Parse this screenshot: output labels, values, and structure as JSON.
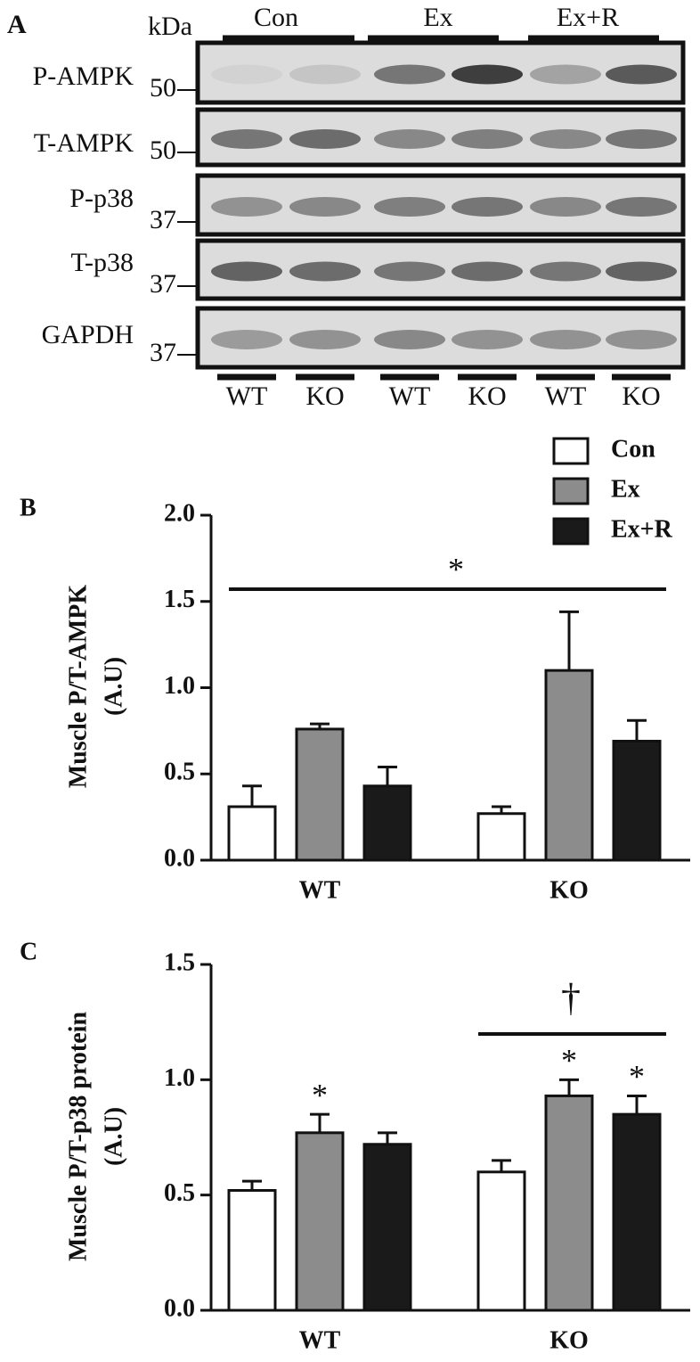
{
  "panel_a": {
    "label": "A",
    "kda": "kDa",
    "groups": [
      "Con",
      "Ex",
      "Ex+R"
    ],
    "rows": [
      {
        "name": "P-AMPK",
        "marker": 50
      },
      {
        "name": "T-AMPK",
        "marker": 50
      },
      {
        "name": "P-p38",
        "marker": 37
      },
      {
        "name": "T-p38",
        "marker": 37
      },
      {
        "name": "GAPDH",
        "marker": 37
      }
    ],
    "lanes": [
      "WT",
      "KO",
      "WT",
      "KO",
      "WT",
      "KO"
    ]
  },
  "chart_data": [
    {
      "type": "bar",
      "panel_label": "B",
      "y_label": [
        "Muscle P/T-AMPK",
        "(A.U)"
      ],
      "categories": [
        "WT",
        "KO"
      ],
      "series": [
        {
          "name": "Con",
          "color": "#ffffff",
          "values": [
            0.31,
            0.27
          ],
          "errors": [
            0.12,
            0.04
          ]
        },
        {
          "name": "Ex",
          "color": "#8c8c8c",
          "values": [
            0.76,
            1.1
          ],
          "errors": [
            0.03,
            0.34
          ]
        },
        {
          "name": "Ex+R",
          "color": "#1a1a1a",
          "values": [
            0.43,
            0.69
          ],
          "errors": [
            0.11,
            0.12
          ]
        }
      ],
      "ylim": [
        0,
        2
      ],
      "yticks": [
        {
          "value": 0,
          "label": "0.0"
        },
        0.5,
        {
          "value": 1,
          "label": "1.0"
        },
        1.5,
        {
          "value": 2,
          "label": "2.0"
        }
      ],
      "legend": "upper right",
      "annotations": [
        {
          "text": "*"
        }
      ]
    },
    {
      "type": "bar",
      "panel_label": "C",
      "y_label": [
        "Muscle P/T-p38 protein",
        "(A.U)"
      ],
      "categories": [
        "WT",
        "KO"
      ],
      "series": [
        {
          "color": "#ffffff",
          "values": [
            0.52,
            0.6
          ],
          "errors": [
            0.04,
            0.05
          ]
        },
        {
          "color": "#8c8c8c",
          "values": [
            0.77,
            0.93
          ],
          "errors": [
            0.08,
            0.07
          ]
        },
        {
          "color": "#1a1a1a",
          "values": [
            0.72,
            0.85
          ],
          "errors": [
            0.05,
            0.08
          ]
        }
      ],
      "ylim": [
        0,
        1.5
      ],
      "yticks": [
        {
          "value": 0,
          "label": "0.0"
        },
        0.5,
        {
          "value": 1,
          "label": "1.0"
        },
        1.5
      ],
      "annotations": [
        {
          "text": "*"
        },
        {
          "text": "*"
        },
        {
          "text": "*"
        },
        {
          "text": "†"
        }
      ]
    }
  ]
}
